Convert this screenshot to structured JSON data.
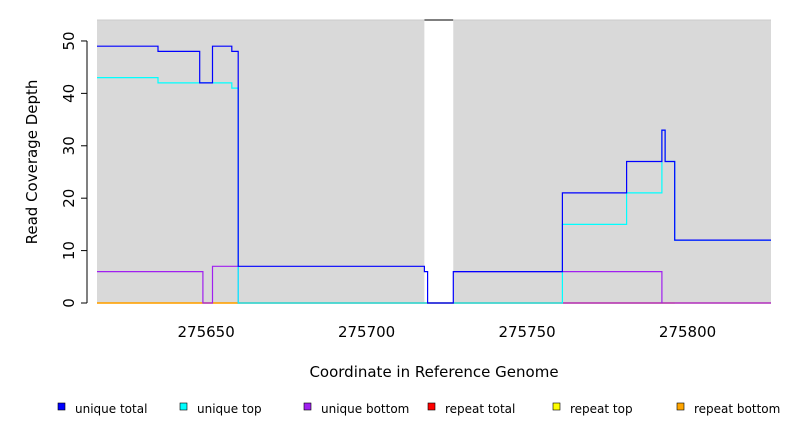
{
  "chart_data": {
    "type": "line",
    "xlabel": "Coordinate in Reference Genome",
    "ylabel": "Read Coverage Depth",
    "xlim": [
      275616,
      275826
    ],
    "ylim": [
      0,
      54
    ],
    "x_ticks": [
      275650,
      275700,
      275750,
      275800
    ],
    "x_tick_labels": [
      "275650",
      "275700",
      "275750",
      "275800"
    ],
    "y_ticks": [
      0,
      10,
      20,
      30,
      40,
      50
    ],
    "y_tick_labels": [
      "0",
      "10",
      "20",
      "30",
      "40",
      "50"
    ],
    "grid": false,
    "background": "#d9d9d9",
    "gaps": [
      [
        275718,
        275727
      ]
    ],
    "legend_position": "bottom",
    "series": [
      {
        "name": "repeat total",
        "color": "#ff0000",
        "points": [
          [
            275616,
            0
          ],
          [
            275826,
            0
          ]
        ]
      },
      {
        "name": "repeat top",
        "color": "#ffff00",
        "points": [
          [
            275616,
            0
          ],
          [
            275826,
            0
          ]
        ]
      },
      {
        "name": "repeat bottom",
        "color": "#ffa500",
        "points": [
          [
            275616,
            0
          ],
          [
            275718,
            0
          ],
          [
            275727,
            0
          ],
          [
            275796,
            0
          ]
        ]
      },
      {
        "name": "unique bottom",
        "color": "#a020f0",
        "points": [
          [
            275616,
            6
          ],
          [
            275649,
            6
          ],
          [
            275649,
            0
          ],
          [
            275652,
            0
          ],
          [
            275652,
            7
          ],
          [
            275660,
            7
          ],
          [
            275660,
            0
          ],
          [
            275718,
            0
          ],
          [
            275727,
            0
          ],
          [
            275792,
            0
          ],
          [
            275792,
            0
          ],
          [
            275826,
            0
          ]
        ],
        "extra": [
          [
            275727,
            6
          ],
          [
            275792,
            6
          ],
          [
            275792,
            0
          ]
        ]
      },
      {
        "name": "unique top",
        "color": "#00ffff",
        "points": [
          [
            275616,
            43
          ],
          [
            275635,
            43
          ],
          [
            275635,
            42
          ],
          [
            275658,
            42
          ],
          [
            275658,
            41
          ],
          [
            275660,
            41
          ],
          [
            275660,
            0
          ],
          [
            275718,
            0
          ],
          [
            275727,
            0
          ],
          [
            275761,
            0
          ],
          [
            275761,
            15
          ],
          [
            275781,
            15
          ],
          [
            275781,
            21
          ],
          [
            275792,
            21
          ],
          [
            275792,
            33
          ],
          [
            275793,
            33
          ],
          [
            275793,
            27
          ],
          [
            275796,
            27
          ],
          [
            275796,
            12
          ],
          [
            275826,
            12
          ]
        ]
      },
      {
        "name": "unique total",
        "color": "#0000ff",
        "points": [
          [
            275616,
            49
          ],
          [
            275635,
            49
          ],
          [
            275635,
            48
          ],
          [
            275648,
            48
          ],
          [
            275648,
            42
          ],
          [
            275652,
            42
          ],
          [
            275652,
            49
          ],
          [
            275658,
            49
          ],
          [
            275658,
            48
          ],
          [
            275660,
            48
          ],
          [
            275660,
            7
          ],
          [
            275718,
            7
          ],
          [
            275718,
            6
          ],
          [
            275719,
            6
          ],
          [
            275719,
            0
          ],
          [
            275727,
            0
          ],
          [
            275727,
            6
          ],
          [
            275761,
            6
          ],
          [
            275761,
            21
          ],
          [
            275781,
            21
          ],
          [
            275781,
            27
          ],
          [
            275792,
            27
          ],
          [
            275792,
            33
          ],
          [
            275793,
            33
          ],
          [
            275793,
            27
          ],
          [
            275796,
            27
          ],
          [
            275796,
            12
          ],
          [
            275826,
            12
          ]
        ]
      }
    ],
    "legend": [
      {
        "name": "unique total",
        "color": "#0000ff"
      },
      {
        "name": "unique top",
        "color": "#00ffff"
      },
      {
        "name": "unique bottom",
        "color": "#a020f0"
      },
      {
        "name": "repeat total",
        "color": "#ff0000"
      },
      {
        "name": "repeat top",
        "color": "#ffff00"
      },
      {
        "name": "repeat bottom",
        "color": "#ffa500"
      }
    ]
  }
}
